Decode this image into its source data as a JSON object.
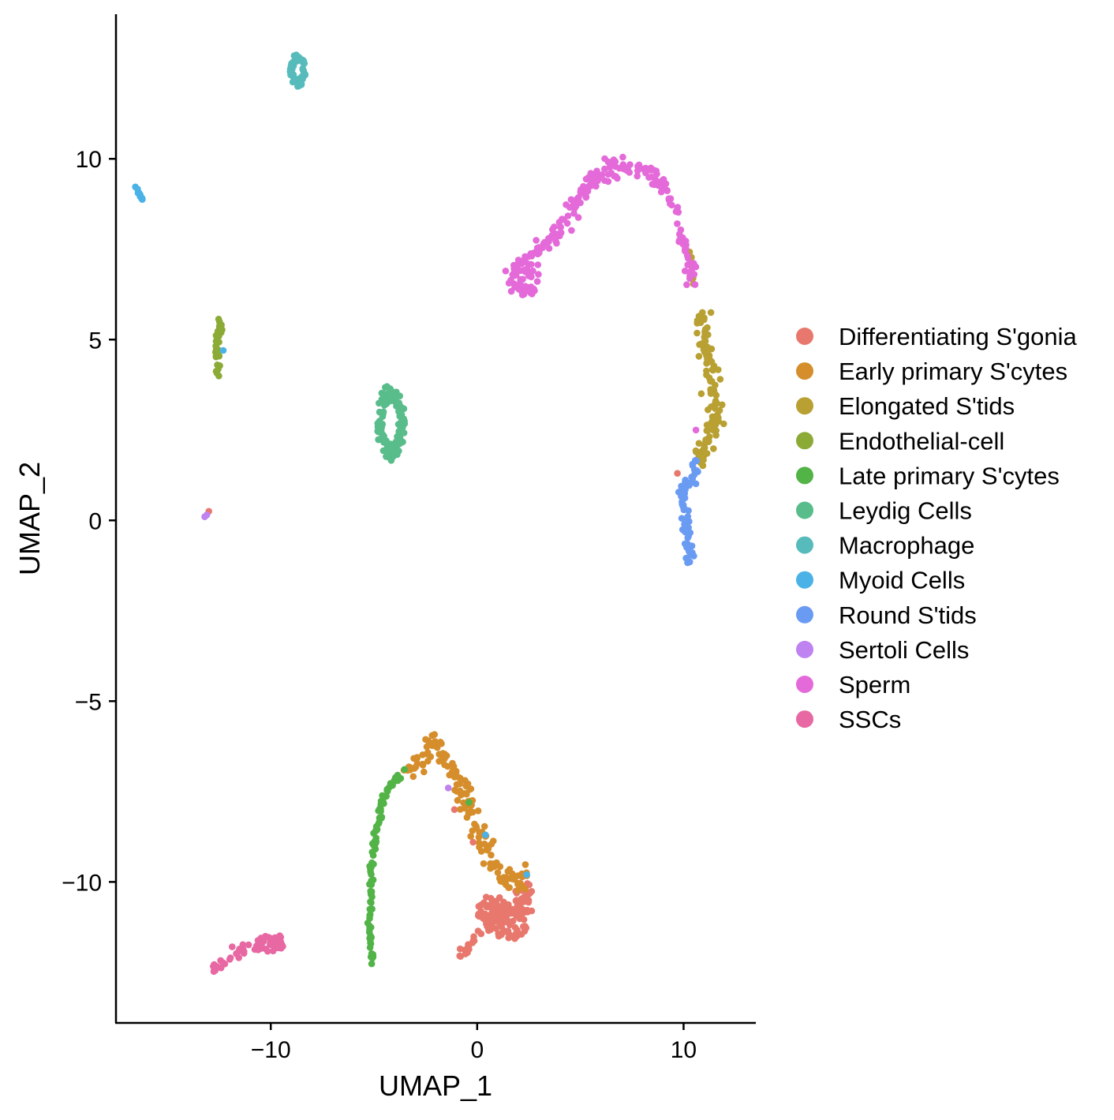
{
  "chart_data": {
    "type": "scatter",
    "xlabel": "UMAP_1",
    "ylabel": "UMAP_2",
    "xlim": [
      -17.5,
      13.5
    ],
    "ylim": [
      -13.9,
      14.0
    ],
    "xticks": [
      -10,
      0,
      10
    ],
    "xtick_labels": [
      "−10",
      "0",
      "10"
    ],
    "yticks": [
      -10,
      -5,
      0,
      5,
      10
    ],
    "ytick_labels": [
      "−10",
      "−5",
      "0",
      "5",
      "10"
    ],
    "grid": false,
    "legend_position": "right",
    "series": [
      {
        "name": "Differentiating S'gonia",
        "color": "#E8786D",
        "regions": [
          {
            "type": "blob",
            "cx": 0.9,
            "cy": -10.8,
            "rx": 0.9,
            "ry": 0.45,
            "n": 60
          },
          {
            "type": "blob",
            "cx": 1.5,
            "cy": -11.1,
            "rx": 1.0,
            "ry": 0.5,
            "n": 60
          },
          {
            "type": "blob",
            "cx": 2.2,
            "cy": -10.5,
            "rx": 0.5,
            "ry": 0.7,
            "n": 30
          },
          {
            "type": "path",
            "points": [
              [
                -1.0,
                -12.1
              ],
              [
                -0.2,
                -11.7
              ],
              [
                0.5,
                -11.2
              ]
            ],
            "n": 20,
            "spread": 0.1
          }
        ],
        "points": [
          [
            -13.0,
            0.25
          ],
          [
            9.7,
            1.3
          ],
          [
            -1.1,
            -8.0
          ],
          [
            -0.2,
            -8.9
          ]
        ]
      },
      {
        "name": "Early primary S'cytes",
        "color": "#D58E2B",
        "regions": [
          {
            "type": "path",
            "points": [
              [
                -3.5,
                -6.9
              ],
              [
                -2.6,
                -6.5
              ],
              [
                -2.0,
                -6.0
              ],
              [
                -1.5,
                -6.7
              ],
              [
                -0.8,
                -7.2
              ],
              [
                -0.3,
                -8.0
              ],
              [
                0.3,
                -9.1
              ],
              [
                1.0,
                -9.8
              ],
              [
                1.8,
                -10.0
              ],
              [
                2.5,
                -9.8
              ]
            ],
            "n": 150,
            "spread": 0.28
          }
        ],
        "points": []
      },
      {
        "name": "Elongated S'tids",
        "color": "#B8A032",
        "regions": [
          {
            "type": "path",
            "points": [
              [
                10.8,
                5.7
              ],
              [
                11.0,
                5.0
              ],
              [
                11.4,
                4.1
              ],
              [
                11.6,
                3.1
              ],
              [
                11.3,
                2.3
              ],
              [
                10.6,
                1.9
              ],
              [
                11.0,
                1.6
              ]
            ],
            "n": 110,
            "spread": 0.3
          },
          {
            "type": "path",
            "points": [
              [
                10.3,
                7.6
              ],
              [
                10.5,
                6.5
              ]
            ],
            "n": 6,
            "spread": 0.05
          }
        ],
        "points": []
      },
      {
        "name": "Endothelial-cell",
        "color": "#8BAA36",
        "regions": [
          {
            "type": "path",
            "points": [
              [
                -12.4,
                5.5
              ],
              [
                -12.6,
                4.9
              ],
              [
                -12.5,
                4.0
              ]
            ],
            "n": 40,
            "spread": 0.12
          }
        ],
        "points": []
      },
      {
        "name": "Late primary S'cytes",
        "color": "#52B347",
        "regions": [
          {
            "type": "path",
            "points": [
              [
                -3.5,
                -6.9
              ],
              [
                -4.5,
                -7.6
              ],
              [
                -4.9,
                -8.6
              ],
              [
                -5.1,
                -9.8
              ],
              [
                -5.2,
                -11.2
              ],
              [
                -5.1,
                -12.3
              ]
            ],
            "n": 100,
            "spread": 0.1
          }
        ],
        "points": [
          [
            -0.4,
            -7.8
          ]
        ]
      },
      {
        "name": "Leydig Cells",
        "color": "#58BC8B",
        "regions": [
          {
            "type": "ring",
            "cx": -4.2,
            "cy": 2.7,
            "rx": 0.7,
            "ry": 1.05,
            "n": 130
          }
        ],
        "points": []
      },
      {
        "name": "Macrophage",
        "color": "#57BBBC",
        "regions": [
          {
            "type": "ring",
            "cx": -8.7,
            "cy": 12.45,
            "rx": 0.4,
            "ry": 0.45,
            "n": 60
          }
        ],
        "points": []
      },
      {
        "name": "Myoid Cells",
        "color": "#4AB2E6",
        "regions": [
          {
            "type": "path",
            "points": [
              [
                -16.6,
                9.25
              ],
              [
                -16.2,
                8.85
              ]
            ],
            "n": 16,
            "spread": 0.03
          }
        ],
        "points": [
          [
            -12.3,
            4.7
          ],
          [
            0.4,
            -8.7
          ],
          [
            2.4,
            -9.8
          ]
        ]
      },
      {
        "name": "Round S'tids",
        "color": "#6A9BF3",
        "regions": [
          {
            "type": "path",
            "points": [
              [
                10.6,
                1.7
              ],
              [
                10.3,
                1.0
              ],
              [
                9.9,
                0.8
              ],
              [
                10.0,
                0.2
              ],
              [
                10.2,
                -0.5
              ],
              [
                10.3,
                -1.2
              ]
            ],
            "n": 70,
            "spread": 0.18
          }
        ],
        "points": []
      },
      {
        "name": "Sertoli Cells",
        "color": "#BE82F1",
        "regions": [],
        "points": [
          [
            -13.2,
            0.1
          ],
          [
            -13.1,
            0.15
          ],
          [
            -1.4,
            -7.4
          ]
        ]
      },
      {
        "name": "Sperm",
        "color": "#E46AD9",
        "regions": [
          {
            "type": "path",
            "points": [
              [
                1.5,
                6.6
              ],
              [
                2.0,
                6.9
              ],
              [
                2.7,
                7.3
              ],
              [
                3.5,
                7.7
              ],
              [
                4.3,
                8.3
              ],
              [
                5.0,
                9.0
              ],
              [
                6.0,
                9.6
              ],
              [
                7.2,
                9.85
              ],
              [
                8.5,
                9.6
              ],
              [
                9.3,
                9.0
              ],
              [
                9.8,
                8.1
              ],
              [
                10.2,
                7.3
              ],
              [
                10.5,
                6.5
              ]
            ],
            "n": 200,
            "spread": 0.22
          },
          {
            "type": "blob",
            "cx": 2.3,
            "cy": 6.7,
            "rx": 0.7,
            "ry": 0.55,
            "n": 40
          }
        ],
        "points": [
          [
            10.6,
            2.5
          ]
        ]
      },
      {
        "name": "SSCs",
        "color": "#E768A2",
        "regions": [
          {
            "type": "path",
            "points": [
              [
                -12.8,
                -12.4
              ],
              [
                -12.0,
                -12.1
              ],
              [
                -11.0,
                -11.8
              ],
              [
                -10.0,
                -11.6
              ],
              [
                -9.5,
                -11.7
              ]
            ],
            "n": 50,
            "spread": 0.15
          },
          {
            "type": "blob",
            "cx": -9.9,
            "cy": -11.7,
            "rx": 0.6,
            "ry": 0.25,
            "n": 20
          }
        ],
        "points": []
      }
    ]
  }
}
